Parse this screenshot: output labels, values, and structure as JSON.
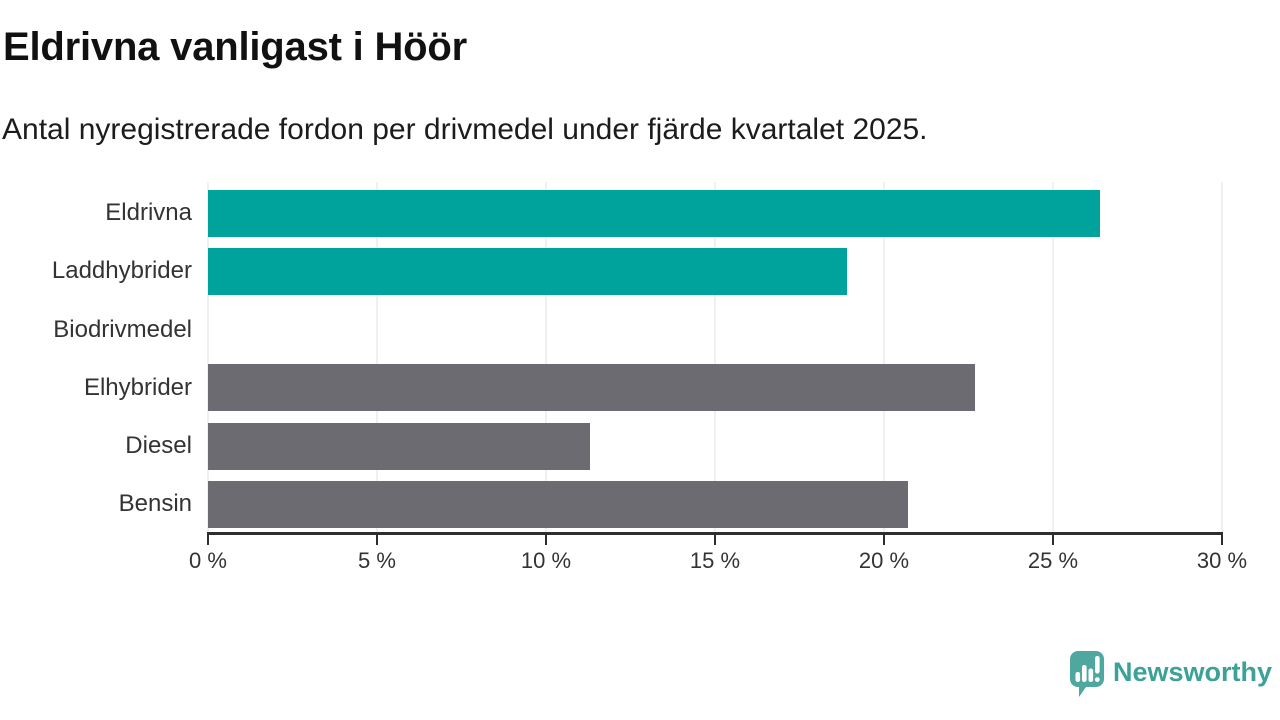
{
  "header": {
    "title": "Eldrivna vanligast i Höör",
    "subtitle": "Antal nyregistrerade fordon per drivmedel under fjärde kvartalet 2025."
  },
  "chart_data": {
    "type": "bar",
    "orientation": "horizontal",
    "title": "Eldrivna vanligast i Höör",
    "subtitle": "Antal nyregistrerade fordon per drivmedel under fjärde kvartalet 2025.",
    "unit": "%",
    "categories": [
      "Eldrivna",
      "Laddhybrider",
      "Biodrivmedel",
      "Elhybrider",
      "Diesel",
      "Bensin"
    ],
    "values": [
      26.4,
      18.9,
      0,
      22.7,
      11.3,
      20.7
    ],
    "bar_colors": [
      "#00a39b",
      "#00a39b",
      "#6c6b71",
      "#6c6b71",
      "#6c6b71",
      "#6c6b71"
    ],
    "xlim": [
      0,
      30
    ],
    "ticks": [
      0,
      5,
      10,
      15,
      20,
      25,
      30
    ],
    "tick_labels": [
      "0 %",
      "5 %",
      "10 %",
      "15 %",
      "20 %",
      "25 %",
      "30 %"
    ],
    "grid": true,
    "legend": "none"
  },
  "colors": {
    "highlight_bar": "#00a39b",
    "default_bar": "#6c6b71",
    "axis": "#2e2e2e",
    "gridline": "#e2e2e2",
    "text": "#333333",
    "brand_teal": "#3ba199",
    "logo_teal": "#4fa8a0"
  },
  "footer": {
    "brand": "Newsworthy"
  }
}
